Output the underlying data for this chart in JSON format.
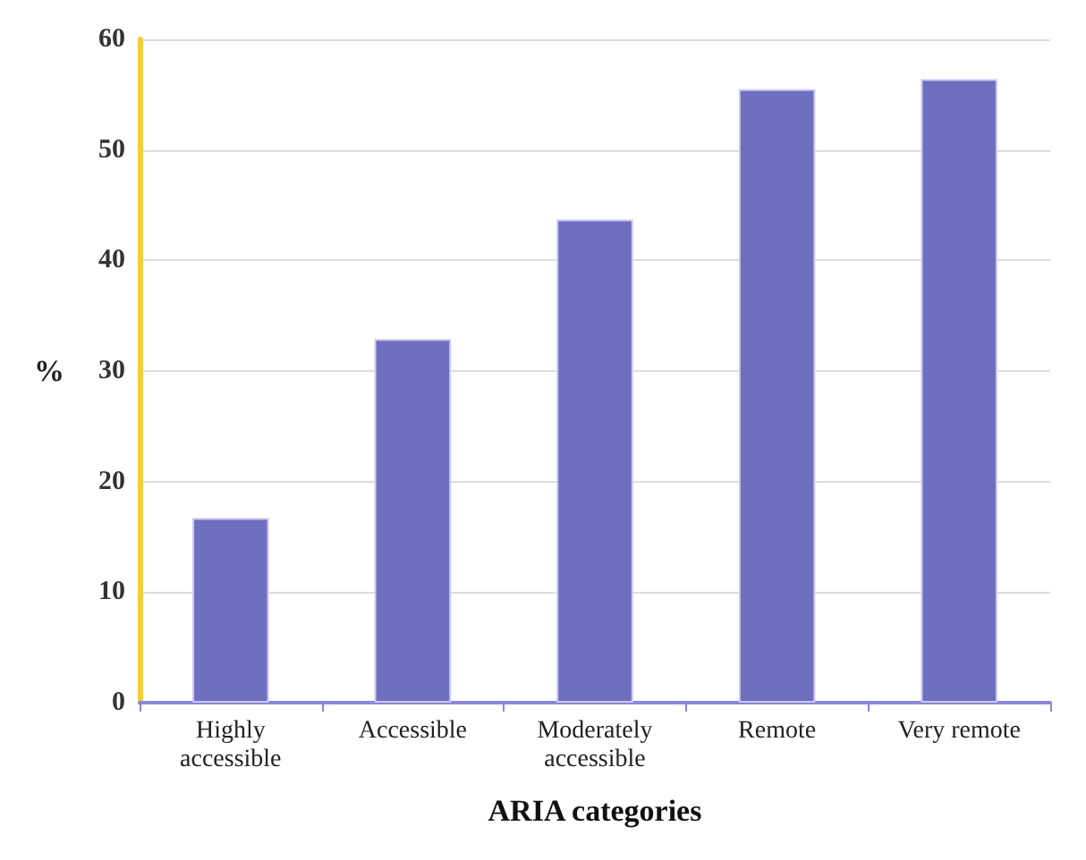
{
  "chart_data": {
    "type": "bar",
    "xlabel": "ARIA categories",
    "ylabel": "%",
    "categories": [
      "Highly\naccessible",
      "Accessible",
      "Moderately\naccessible",
      "Remote",
      "Very remote"
    ],
    "values": [
      16.7,
      32.9,
      43.7,
      55.5,
      56.4
    ],
    "color": "#6f6fbf",
    "ylim": [
      0,
      60
    ],
    "yticks": [
      0,
      10,
      20,
      30,
      40,
      50,
      60
    ],
    "grid": "y"
  }
}
